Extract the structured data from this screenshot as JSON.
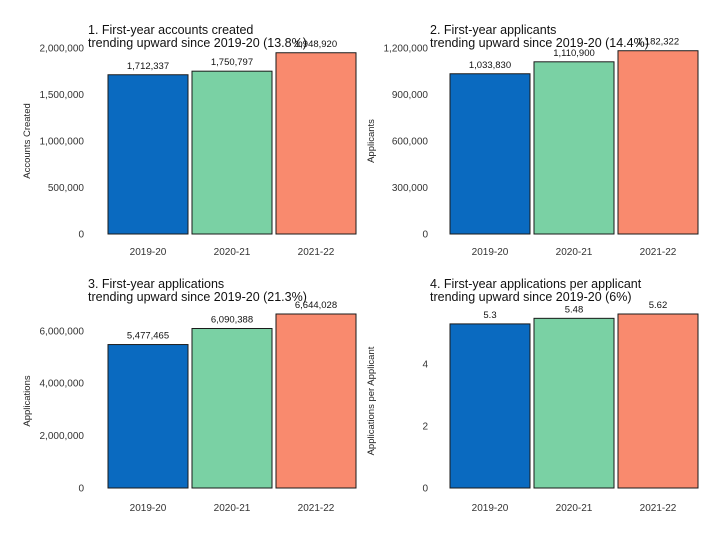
{
  "colors": {
    "2019-20": "#0a6ac0",
    "2020-21": "#7ad1a4",
    "2021-22": "#f98a6e",
    "bar_stroke": "#1a1a1a"
  },
  "chart_data": [
    {
      "type": "bar",
      "title_lines": [
        "1. First-year accounts created",
        "trending upward since 2019-20 (13.8%)"
      ],
      "xlabel": "",
      "ylabel": "Accounts Created",
      "categories": [
        "2019-20",
        "2020-21",
        "2021-22"
      ],
      "values": [
        1712337,
        1750797,
        1948920
      ],
      "data_labels": [
        "1,712,337",
        "1,750,797",
        "1,948,920"
      ],
      "ylim": [
        0,
        2000000
      ],
      "yticks": [
        0,
        500000,
        1000000,
        1500000,
        2000000
      ],
      "ytick_labels": [
        "0",
        "500,000",
        "1,000,000",
        "1,500,000",
        "2,000,000"
      ],
      "grid": false,
      "legend": "none"
    },
    {
      "type": "bar",
      "title_lines": [
        "2. First-year applicants",
        "trending upward since 2019-20 (14.4%)"
      ],
      "xlabel": "",
      "ylabel": "Applicants",
      "categories": [
        "2019-20",
        "2020-21",
        "2021-22"
      ],
      "values": [
        1033830,
        1110900,
        1182322
      ],
      "data_labels": [
        "1,033,830",
        "1,110,900",
        "1,182,322"
      ],
      "ylim": [
        0,
        1200000
      ],
      "yticks": [
        0,
        300000,
        600000,
        900000,
        1200000
      ],
      "ytick_labels": [
        "0",
        "300,000",
        "600,000",
        "900,000",
        "1,200,000"
      ],
      "grid": false,
      "legend": "none"
    },
    {
      "type": "bar",
      "title_lines": [
        "3. First-year applications",
        "trending upward since 2019-20 (21.3%)"
      ],
      "xlabel": "",
      "ylabel": "Applications",
      "categories": [
        "2019-20",
        "2020-21",
        "2021-22"
      ],
      "values": [
        5477465,
        6090388,
        6644028
      ],
      "data_labels": [
        "5,477,465",
        "6,090,388",
        "6,644,028"
      ],
      "ylim": [
        0,
        6644028
      ],
      "yticks": [
        0,
        2000000,
        4000000,
        6000000
      ],
      "ytick_labels": [
        "0",
        "2,000,000",
        "4,000,000",
        "6,000,000"
      ],
      "grid": false,
      "legend": "none"
    },
    {
      "type": "bar",
      "title_lines": [
        "4. First-year applications per applicant",
        "trending upward since 2019-20 (6%)"
      ],
      "xlabel": "",
      "ylabel": "Applications per Applicant",
      "categories": [
        "2019-20",
        "2020-21",
        "2021-22"
      ],
      "values": [
        5.3,
        5.48,
        5.62
      ],
      "data_labels": [
        "5.3",
        "5.48",
        "5.62"
      ],
      "ylim": [
        0,
        5.62
      ],
      "yticks": [
        0,
        2,
        4
      ],
      "ytick_labels": [
        "0",
        "2",
        "4"
      ],
      "grid": false,
      "legend": "none"
    }
  ]
}
